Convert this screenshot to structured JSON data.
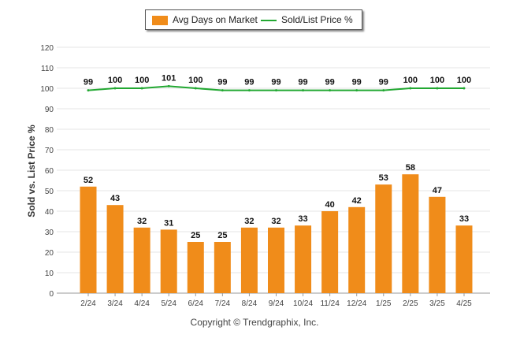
{
  "chart_data": {
    "type": "bar",
    "categories": [
      "2/24",
      "3/24",
      "4/24",
      "5/24",
      "6/24",
      "7/24",
      "8/24",
      "9/24",
      "10/24",
      "11/24",
      "12/24",
      "1/25",
      "2/25",
      "3/25",
      "4/25"
    ],
    "series": [
      {
        "name": "Avg Days on Market",
        "kind": "bar",
        "color": "#f08c1a",
        "values": [
          52,
          43,
          32,
          31,
          25,
          25,
          32,
          32,
          33,
          40,
          42,
          53,
          58,
          47,
          33
        ]
      },
      {
        "name": "Sold/List Price %",
        "kind": "line",
        "color": "#22a832",
        "values": [
          99,
          100,
          100,
          101,
          100,
          99,
          99,
          99,
          99,
          99,
          99,
          99,
          100,
          100,
          100
        ]
      }
    ],
    "ylabel": "Sold vs. List Price %",
    "ylim": [
      0,
      120
    ],
    "yticks": [
      0,
      10,
      20,
      30,
      40,
      50,
      60,
      70,
      80,
      90,
      100,
      110,
      120
    ],
    "grid": true,
    "legend_position": "top-center"
  },
  "legend": {
    "bar_label": "Avg Days on Market",
    "line_label": "Sold/List Price %"
  },
  "footer": {
    "copyright": "Copyright © Trendgraphix, Inc."
  }
}
